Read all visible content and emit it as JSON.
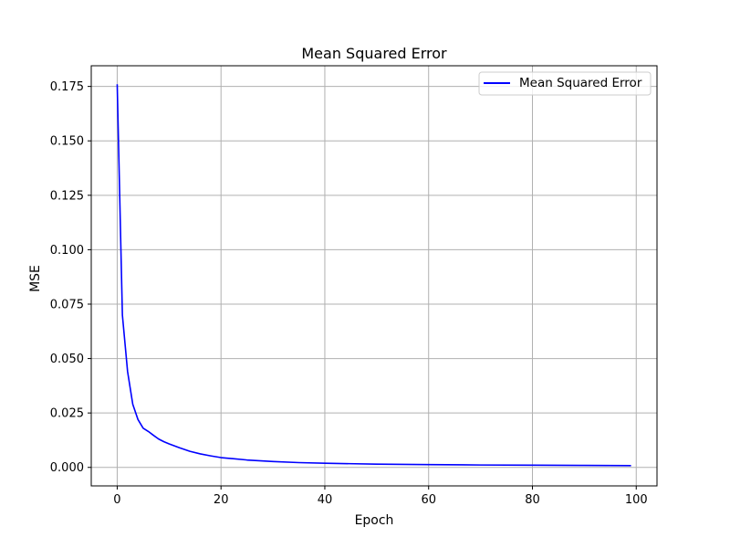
{
  "chart_data": {
    "type": "line",
    "title": "Mean Squared Error",
    "xlabel": "Epoch",
    "ylabel": "MSE",
    "xlim": [
      -5,
      104
    ],
    "ylim": [
      -0.0085,
      0.1845
    ],
    "xticks": [
      0,
      20,
      40,
      60,
      80,
      100
    ],
    "xtick_labels": [
      "0",
      "20",
      "40",
      "60",
      "80",
      "100"
    ],
    "yticks": [
      0.0,
      0.025,
      0.05,
      0.075,
      0.1,
      0.125,
      0.15,
      0.175
    ],
    "ytick_labels": [
      "0.000",
      "0.025",
      "0.050",
      "0.075",
      "0.100",
      "0.125",
      "0.150",
      "0.175"
    ],
    "grid": true,
    "legend_position": "top-right",
    "series": [
      {
        "name": "Mean Squared Error",
        "color": "#0000ff",
        "x": [
          0,
          1,
          2,
          3,
          4,
          5,
          6,
          7,
          8,
          9,
          10,
          12,
          14,
          16,
          18,
          20,
          25,
          30,
          35,
          40,
          50,
          60,
          70,
          80,
          90,
          99
        ],
        "y": [
          0.176,
          0.07,
          0.044,
          0.029,
          0.022,
          0.018,
          0.0165,
          0.0147,
          0.013,
          0.0118,
          0.0108,
          0.009,
          0.0074,
          0.0062,
          0.0053,
          0.0045,
          0.0034,
          0.0027,
          0.0022,
          0.0019,
          0.0015,
          0.0013,
          0.0011,
          0.001,
          0.0009,
          0.0008
        ]
      }
    ]
  }
}
